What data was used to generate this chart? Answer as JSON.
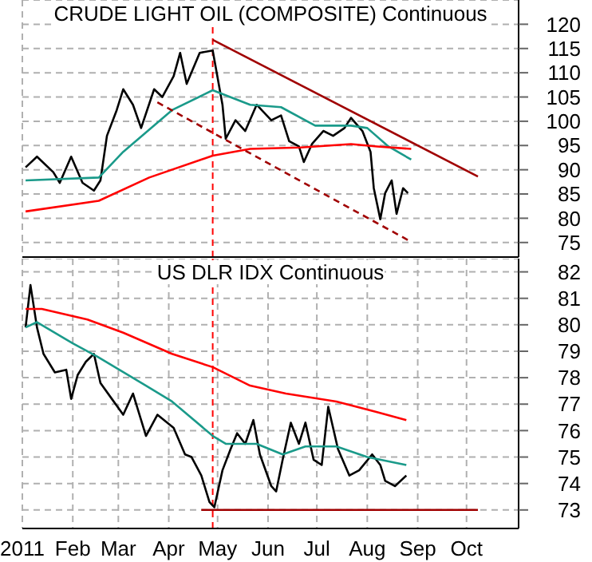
{
  "chart_data": [
    {
      "type": "line",
      "title": "CRUDE LIGHT OIL (COMPOSITE) Continuous",
      "xlim": [
        "2011-01-01",
        "2011-11-02"
      ],
      "ylim": [
        72,
        125
      ],
      "yticks": [
        75,
        80,
        85,
        90,
        95,
        100,
        105,
        110,
        115,
        120
      ],
      "xticks": [
        {
          "value": "2011-01-01",
          "label": null
        },
        {
          "value": "2011-02-01",
          "label": null
        },
        {
          "value": "2011-03-01",
          "label": null
        },
        {
          "value": "2011-04-01",
          "label": null
        },
        {
          "value": "2011-05-01",
          "label": null
        },
        {
          "value": "2011-06-01",
          "label": null
        },
        {
          "value": "2011-07-01",
          "label": null
        },
        {
          "value": "2011-08-01",
          "label": null
        },
        {
          "value": "2011-09-01",
          "label": null
        },
        {
          "value": "2011-10-01",
          "label": null
        }
      ],
      "tick_labels": "y",
      "grid": true,
      "marker": "none",
      "ref_lines": [
        {
          "axis": "x",
          "value": "2011-04-28",
          "color": "#ff0000",
          "line_style": "dashed"
        }
      ],
      "series": [
        {
          "color": "#000000",
          "x": [
            "2011-01-03",
            "2011-01-10",
            "2011-01-20",
            "2011-01-24",
            "2011-01-31",
            "2011-02-07",
            "2011-02-14",
            "2011-02-18",
            "2011-02-22",
            "2011-02-28",
            "2011-03-04",
            "2011-03-10",
            "2011-03-15",
            "2011-03-23",
            "2011-03-28",
            "2011-04-04",
            "2011-04-08",
            "2011-04-12",
            "2011-04-20",
            "2011-04-28",
            "2011-05-04",
            "2011-05-06",
            "2011-05-12",
            "2011-05-18",
            "2011-05-25",
            "2011-06-03",
            "2011-06-09",
            "2011-06-14",
            "2011-06-20",
            "2011-06-23",
            "2011-06-28",
            "2011-07-05",
            "2011-07-11",
            "2011-07-18",
            "2011-07-22",
            "2011-07-29",
            "2011-08-03",
            "2011-08-05",
            "2011-08-09",
            "2011-08-12",
            "2011-08-16",
            "2011-08-19",
            "2011-08-23",
            "2011-08-26"
          ],
          "values": [
            90.5,
            92.7,
            89.5,
            87.3,
            92.7,
            87.3,
            85.7,
            87.8,
            97,
            102.3,
            106.6,
            103.4,
            98.6,
            106.6,
            105,
            109.3,
            114.1,
            107.7,
            114.1,
            114.6,
            103.4,
            96.4,
            100.2,
            98,
            103.4,
            100.2,
            101.2,
            95.9,
            94.8,
            91.6,
            95.3,
            98,
            97,
            98.6,
            100.7,
            98,
            93.7,
            86.2,
            79.8,
            85.2,
            87.8,
            80.9,
            86.2,
            85.2
          ]
        },
        {
          "color": "#1a9a8a",
          "x": [
            "2011-01-03",
            "2011-02-17",
            "2011-03-04",
            "2011-04-03",
            "2011-04-28",
            "2011-05-21",
            "2011-06-09",
            "2011-06-30",
            "2011-07-22",
            "2011-08-01",
            "2011-08-14",
            "2011-08-28"
          ],
          "values": [
            87.8,
            88.4,
            93.7,
            102.3,
            106.4,
            103.4,
            102.9,
            99.1,
            99.1,
            98.6,
            94.8,
            92.1
          ]
        },
        {
          "color": "#ff0000",
          "x": [
            "2011-01-03",
            "2011-02-17",
            "2011-03-20",
            "2011-04-28",
            "2011-05-21",
            "2011-06-21",
            "2011-07-22",
            "2011-08-07",
            "2011-08-28"
          ],
          "values": [
            81.4,
            83.6,
            88.4,
            92.9,
            94.3,
            94.6,
            95.3,
            94.8,
            94.3
          ]
        },
        {
          "color": "#a00000",
          "x": [
            "2011-04-28",
            "2011-10-08"
          ],
          "values": [
            116.8,
            88.6
          ]
        },
        {
          "color": "#a00000",
          "line_style": "dashed",
          "x": [
            "2011-03-25",
            "2011-08-26"
          ],
          "values": [
            103.9,
            75.5
          ]
        }
      ]
    },
    {
      "type": "line",
      "title": "US DLR IDX Continuous",
      "xlim": [
        "2011-01-01",
        "2011-11-02"
      ],
      "ylim": [
        72.3,
        82.5
      ],
      "yticks": [
        73,
        74,
        75,
        76,
        77,
        78,
        79,
        80,
        81,
        82
      ],
      "xticks": [
        {
          "value": "2011-01-01",
          "label": "2011"
        },
        {
          "value": "2011-02-01",
          "label": "Feb"
        },
        {
          "value": "2011-03-01",
          "label": "Mar"
        },
        {
          "value": "2011-04-01",
          "label": "Apr"
        },
        {
          "value": "2011-05-01",
          "label": "May"
        },
        {
          "value": "2011-06-01",
          "label": "Jun"
        },
        {
          "value": "2011-07-01",
          "label": "Jul"
        },
        {
          "value": "2011-08-01",
          "label": "Aug"
        },
        {
          "value": "2011-09-01",
          "label": "Sep"
        },
        {
          "value": "2011-10-01",
          "label": "Oct"
        }
      ],
      "grid": true,
      "marker": "none",
      "ref_lines": [
        {
          "axis": "x",
          "value": "2011-04-28",
          "color": "#ff0000",
          "line_style": "dashed"
        }
      ],
      "series": [
        {
          "color": "#000000",
          "x": [
            "2011-01-03",
            "2011-01-06",
            "2011-01-10",
            "2011-01-14",
            "2011-01-21",
            "2011-01-28",
            "2011-01-31",
            "2011-02-04",
            "2011-02-09",
            "2011-02-14",
            "2011-02-18",
            "2011-02-25",
            "2011-03-04",
            "2011-03-10",
            "2011-03-18",
            "2011-03-25",
            "2011-04-04",
            "2011-04-11",
            "2011-04-15",
            "2011-04-21",
            "2011-04-26",
            "2011-04-29",
            "2011-05-04",
            "2011-05-09",
            "2011-05-13",
            "2011-05-18",
            "2011-05-23",
            "2011-05-27",
            "2011-06-03",
            "2011-06-06",
            "2011-06-10",
            "2011-06-15",
            "2011-06-20",
            "2011-06-24",
            "2011-06-29",
            "2011-07-04",
            "2011-07-08",
            "2011-07-14",
            "2011-07-21",
            "2011-07-27",
            "2011-08-04",
            "2011-08-09",
            "2011-08-12",
            "2011-08-18",
            "2011-08-25"
          ],
          "values": [
            79.9,
            81.5,
            79.9,
            78.9,
            78.2,
            78.3,
            77.2,
            78.1,
            78.6,
            78.9,
            77.8,
            77.2,
            76.6,
            77.4,
            75.8,
            76.6,
            76.1,
            75.1,
            75,
            74.3,
            73.3,
            73.1,
            74.5,
            75.3,
            75.9,
            75.5,
            76.4,
            75.1,
            73.9,
            73.7,
            74.9,
            76.3,
            75.5,
            76.3,
            74.9,
            74.7,
            76.9,
            75.3,
            74.3,
            74.5,
            75.1,
            74.7,
            74.1,
            73.9,
            74.3
          ]
        },
        {
          "color": "#1a9a8a",
          "x": [
            "2011-01-03",
            "2011-01-10",
            "2011-02-01",
            "2011-02-16",
            "2011-03-18",
            "2011-04-03",
            "2011-04-28",
            "2011-05-06",
            "2011-05-25",
            "2011-06-10",
            "2011-06-24",
            "2011-07-13",
            "2011-08-01",
            "2011-08-25"
          ],
          "values": [
            79.9,
            80.1,
            79.3,
            78.8,
            77.7,
            77.1,
            75.8,
            75.5,
            75.5,
            75.1,
            75.4,
            75.4,
            75,
            74.7
          ]
        },
        {
          "color": "#ff0000",
          "x": [
            "2011-01-03",
            "2011-01-13",
            "2011-02-10",
            "2011-03-04",
            "2011-04-03",
            "2011-04-28",
            "2011-05-21",
            "2011-06-12",
            "2011-07-13",
            "2011-08-07",
            "2011-08-25"
          ],
          "values": [
            80.6,
            80.6,
            80.2,
            79.7,
            78.9,
            78.4,
            77.7,
            77.4,
            77.1,
            76.7,
            76.4
          ]
        },
        {
          "color": "#a00000",
          "x": [
            "2011-04-21",
            "2011-10-08"
          ],
          "values": [
            73,
            73
          ]
        }
      ]
    }
  ]
}
